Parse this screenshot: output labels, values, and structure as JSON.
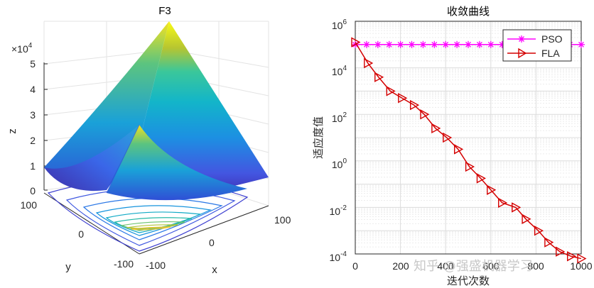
{
  "chart_data": [
    {
      "type": "surface3d",
      "title": "F3",
      "xlabel": "x",
      "ylabel": "y",
      "zlabel": "z",
      "zscale_label": "×10",
      "zscale_exp": "4",
      "x_ticks": [
        "-100",
        "0",
        "100"
      ],
      "y_ticks": [
        "-100",
        "0",
        "100"
      ],
      "z_ticks": [
        "0",
        "1",
        "2",
        "3",
        "4",
        "5"
      ],
      "xlim": [
        -100,
        100
      ],
      "ylim": [
        -100,
        100
      ],
      "zlim": [
        0,
        50000
      ],
      "colormap": "parula",
      "contour_levels": 10
    },
    {
      "type": "line",
      "title": "收敛曲线",
      "xlabel": "迭代次数",
      "ylabel": "适应度值",
      "yscale": "log",
      "xlim": [
        0,
        1000
      ],
      "ylim_exp": [
        -4,
        6
      ],
      "x_ticks": [
        "0",
        "200",
        "400",
        "600",
        "800",
        "1000"
      ],
      "y_tick_exponents": [
        "6",
        "4",
        "2",
        "0",
        "-2",
        "-4"
      ],
      "legend_position": "top-right",
      "series": [
        {
          "name": "PSO",
          "color": "#ff00ff",
          "marker": "asterisk",
          "x": [
            0,
            50,
            100,
            150,
            200,
            250,
            300,
            350,
            400,
            450,
            500,
            550,
            600,
            650,
            700,
            750,
            800,
            850,
            900,
            950,
            1000
          ],
          "log10_y": [
            5.0,
            5.0,
            5.0,
            5.0,
            5.0,
            5.0,
            5.0,
            5.0,
            5.0,
            5.0,
            5.0,
            5.0,
            5.0,
            5.0,
            5.0,
            5.0,
            5.0,
            5.0,
            5.0,
            5.0,
            5.0
          ]
        },
        {
          "name": "FLA",
          "color": "#d40000",
          "marker": "triangle-right",
          "x": [
            0,
            56,
            103,
            155,
            207,
            260,
            305,
            355,
            405,
            455,
            505,
            555,
            600,
            650,
            710,
            755,
            810,
            855,
            905,
            955,
            1000
          ],
          "log10_y": [
            5.1,
            4.2,
            3.6,
            3.0,
            2.7,
            2.4,
            2.0,
            1.4,
            1.0,
            0.5,
            -0.25,
            -0.75,
            -1.25,
            -1.8,
            -2.0,
            -2.5,
            -3.0,
            -3.5,
            -3.9,
            -4.1,
            -4.2
          ]
        }
      ]
    }
  ],
  "watermark": "知乎 @强盛机器学习"
}
